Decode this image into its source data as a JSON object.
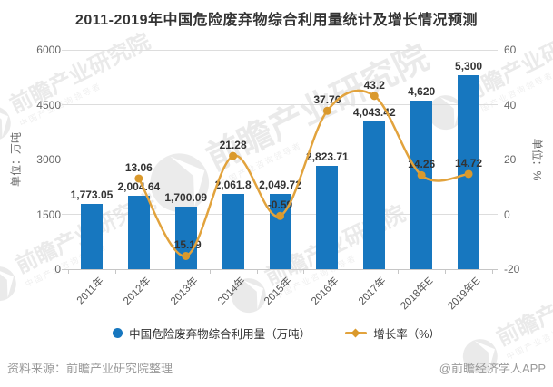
{
  "title": "2011-2019年中国危险废弃物综合利用量统计及增长情况预测",
  "chart_data": {
    "type": "bar",
    "categories": [
      "2011年",
      "2012年",
      "2013年",
      "2014年",
      "2015年",
      "2016年",
      "2017年",
      "2018年E",
      "2019年E"
    ],
    "series": [
      {
        "name": "中国危险废弃物综合利用量（万吨）",
        "type": "bar",
        "yaxis": "left",
        "values": [
          1773.05,
          2004.64,
          1700.09,
          2061.8,
          2049.72,
          2823.71,
          4043.42,
          4620,
          5300
        ],
        "labels": [
          "1,773.05",
          "2,004.64",
          "1,700.09",
          "2,061.8",
          "2,049.72",
          "2,823.71",
          "4,043.42",
          "4,620",
          "5,300"
        ]
      },
      {
        "name": "增长率（%）",
        "type": "line",
        "yaxis": "right",
        "start_index": 1,
        "values": [
          13.06,
          -15.19,
          21.28,
          -0.59,
          37.76,
          43.2,
          14.26,
          14.72
        ],
        "labels": [
          "13.06",
          "-15.19",
          "21.28",
          "-0.59",
          "37.76",
          "43.2",
          "14.26",
          "14.72"
        ]
      }
    ],
    "left_axis": {
      "title": "单位：万吨",
      "min": 0,
      "max": 6000,
      "ticks": [
        "0",
        "1500",
        "3000",
        "4500",
        "6000"
      ]
    },
    "right_axis": {
      "title": "单位：%",
      "min": -20,
      "max": 60,
      "ticks": [
        "-20",
        "0",
        "20",
        "40",
        "60"
      ]
    },
    "grid": true,
    "legend_position": "bottom"
  },
  "legend": {
    "bar_label": "中国危险废弃物综合利用量（万吨）",
    "line_label": "增长率（%）"
  },
  "footer": {
    "source": "资料来源：前瞻产业研究院整理",
    "credit": "@前瞻经济学人APP"
  },
  "watermark": {
    "brand": "前瞻产业研究院",
    "tagline": "中国产业咨询领导者"
  },
  "colors": {
    "bar": "#1777BF",
    "line": "#E2A33D",
    "dot": "#DA992C",
    "grid": "#DDDDDD",
    "axis_line": "#C6C6C6",
    "value_label": "#333333",
    "axis_text": "#666666",
    "x_label": "#555555",
    "footer_text": "#999999",
    "watermark": "#DADADA"
  }
}
